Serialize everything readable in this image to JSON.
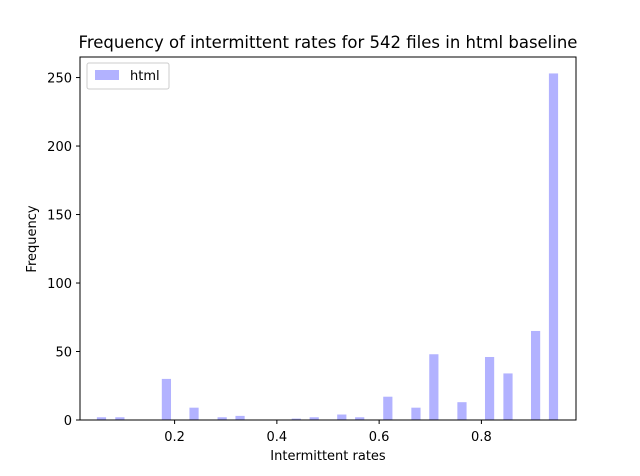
{
  "chart_data": {
    "type": "bar",
    "title": "Frequency of intermittent rates for 542 files in html baseline",
    "xlabel": "Intermittent rates",
    "ylabel": "Frequency",
    "xlim": [
      0.015,
      0.985
    ],
    "ylim": [
      0,
      265
    ],
    "xticks": [
      0.2,
      0.4,
      0.6,
      0.8
    ],
    "xtick_labels": [
      "0.2",
      "0.4",
      "0.6",
      "0.8"
    ],
    "yticks": [
      0,
      50,
      100,
      150,
      200,
      250
    ],
    "ytick_labels": [
      "0",
      "50",
      "100",
      "150",
      "200",
      "250"
    ],
    "grid": false,
    "legend": {
      "position": "top-left",
      "entries": [
        "html"
      ]
    },
    "bar_width": 0.018,
    "series": [
      {
        "name": "html",
        "color": "#b2b2ff",
        "x": [
          0.057,
          0.093,
          0.184,
          0.238,
          0.293,
          0.328,
          0.438,
          0.473,
          0.527,
          0.562,
          0.617,
          0.672,
          0.707,
          0.762,
          0.816,
          0.852,
          0.906,
          0.941
        ],
        "values": [
          2,
          2,
          30,
          9,
          2,
          3,
          1,
          2,
          4,
          2,
          17,
          9,
          48,
          13,
          46,
          34,
          65,
          253
        ]
      }
    ]
  }
}
